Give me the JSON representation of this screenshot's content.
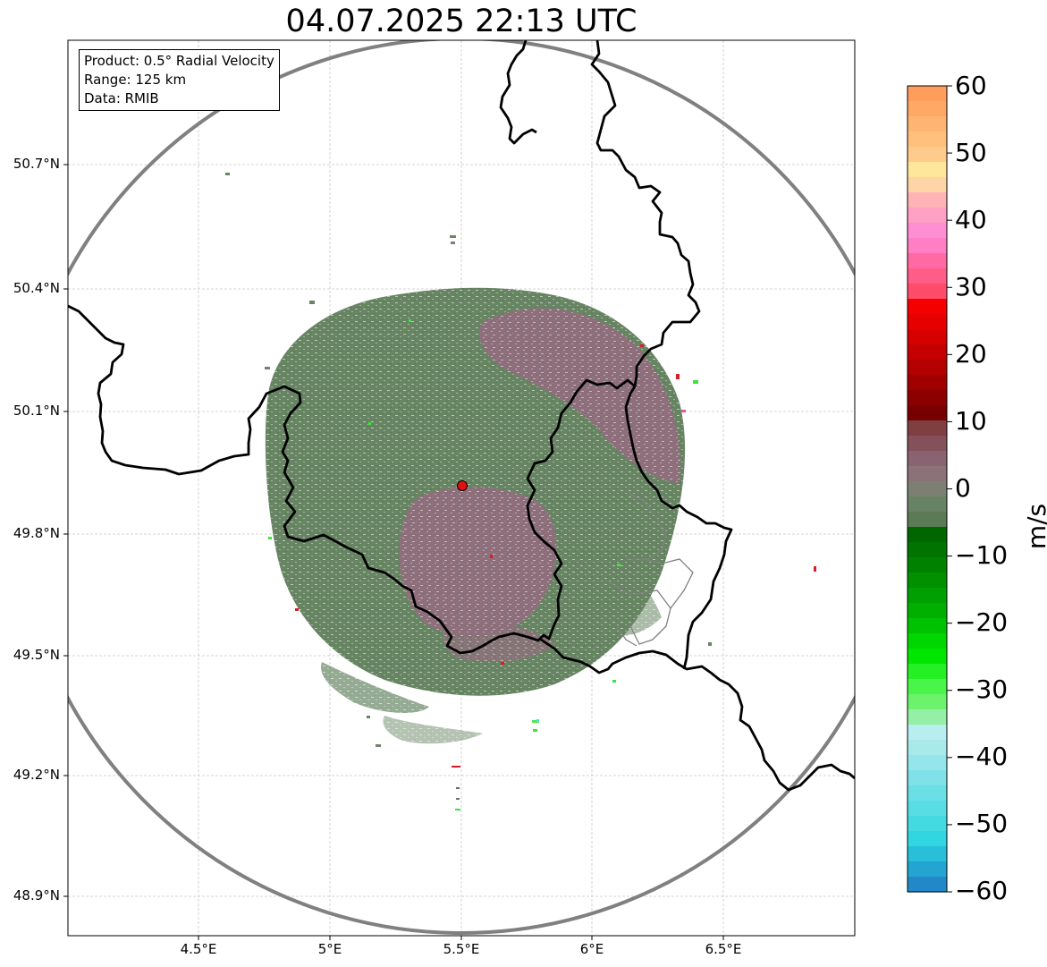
{
  "title": "04.07.2025 22:13 UTC",
  "info": {
    "product": "Product: 0.5° Radial Velocity",
    "range": "Range: 125 km",
    "data": "Data: RMIB"
  },
  "lat_ticks": [
    "50.7°N",
    "50.4°N",
    "50.1°N",
    "49.8°N",
    "49.5°N",
    "49.2°N",
    "48.9°N"
  ],
  "lon_ticks": [
    "4.5°E",
    "5°E",
    "5.5°E",
    "6°E",
    "6.5°E"
  ],
  "colorbar": {
    "label": "m/s",
    "ticks": [
      "60",
      "50",
      "40",
      "30",
      "20",
      "10",
      "0",
      "−10",
      "−20",
      "−30",
      "−40",
      "−50",
      "−60"
    ],
    "range": [
      -60,
      60
    ]
  },
  "radar_site": {
    "lon": 5.505,
    "lat": 49.914,
    "marker": "red-dot"
  },
  "colors": {
    "approaching": "#5e7e5a",
    "receding": "#8a6a74",
    "border": "#000000",
    "range_ring": "#808080"
  }
}
